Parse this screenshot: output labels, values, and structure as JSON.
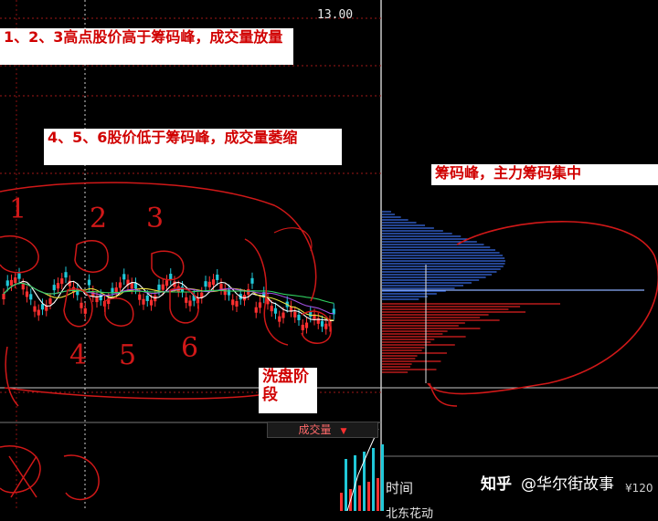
{
  "annotations": {
    "high_points": "1、2、3高点股价高于筹码峰，成交量放量",
    "low_points": "4、5、6股价低于筹码峰，成交量萎缩",
    "chip_peak": "筹码峰，主力筹码集中",
    "wash_stage": "洗盘阶段"
  },
  "hand_numbers": {
    "n1": "1",
    "n2": "2",
    "n3": "3",
    "n4": "4",
    "n5": "5",
    "n6": "6"
  },
  "chart": {
    "price_marker": "13.00",
    "volume_indicator": "成交量",
    "time_label": "时间",
    "bottom_partial_text": "北东花动",
    "cut_text": "¥120"
  },
  "watermark": {
    "logo": "知乎",
    "handle": "@华尔街故事"
  },
  "colors": {
    "background": "#000000",
    "rise_candle": "#ff3030",
    "fall_candle": "#20c8d8",
    "chip_above": "#3a6ee8",
    "chip_below": "#e02020",
    "annotation_red": "#d00000",
    "grid_line": "#a01818"
  }
}
